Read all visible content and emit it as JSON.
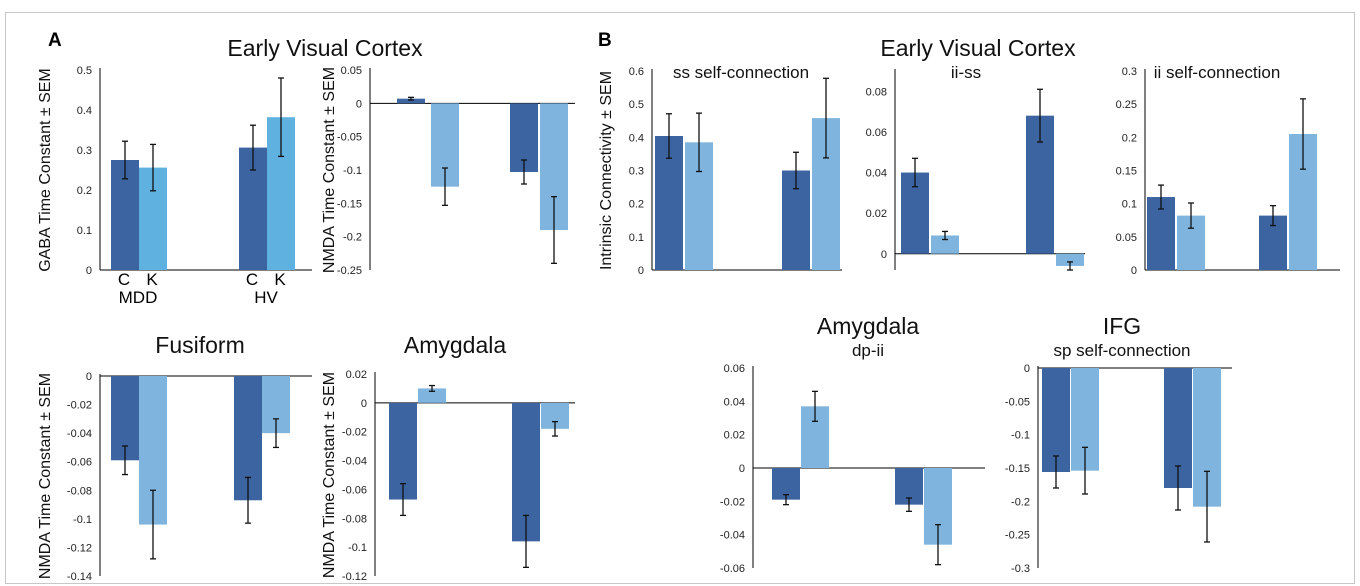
{
  "panels": {
    "a": "A",
    "b": "B"
  },
  "headings": {
    "a_top": "Early Visual Cortex",
    "b_top": "Early Visual Cortex",
    "fusiform": "Fusiform",
    "amygdala_a": "Amygdala",
    "amygdala_b": "Amygdala",
    "ifg": "IFG"
  },
  "group_labels": {
    "c": "C",
    "k": "K",
    "mdd": "MDD",
    "hv": "HV"
  },
  "colors": {
    "dark": "#3c64a0",
    "medium": "#5fb1e0",
    "light": "#7eb4de"
  },
  "chart_data": [
    {
      "id": "gaba_evc",
      "type": "bar",
      "ylabel": "GABA Time Constant ± SEM",
      "title": "",
      "ylim": [
        0,
        0.5
      ],
      "ticks": [
        "0.5",
        "0.4",
        "0.3",
        "0.2",
        "0.1",
        "0"
      ],
      "groups": [
        "MDD",
        "HV"
      ],
      "conditions": [
        "C",
        "K"
      ],
      "values": [
        0.275,
        0.256,
        0.306,
        0.382
      ],
      "errors": [
        0.047,
        0.058,
        0.056,
        0.098
      ],
      "colors": [
        "dark",
        "medium",
        "dark",
        "medium"
      ]
    },
    {
      "id": "nmda_evc",
      "type": "bar",
      "ylabel": "NMDA Time Constant ± SEM",
      "title": "",
      "ylim": [
        -0.25,
        0.05
      ],
      "ticks": [
        "0.05",
        "0",
        "-0.05",
        "-0.1",
        "-0.15",
        "-0.2",
        "-0.25"
      ],
      "groups": [
        "MDD",
        "HV"
      ],
      "conditions": [
        "C",
        "K"
      ],
      "values": [
        0.007,
        -0.125,
        -0.103,
        -0.19
      ],
      "errors": [
        0.002,
        0.028,
        0.018,
        0.05
      ],
      "colors": [
        "dark",
        "light",
        "dark",
        "light"
      ]
    },
    {
      "id": "nmda_fusiform",
      "type": "bar",
      "ylabel": "NMDA Time Constant ± SEM",
      "title": "",
      "ylim": [
        -0.14,
        0
      ],
      "ticks": [
        "0",
        "-0.02",
        "-0.04",
        "-0.06",
        "-0.08",
        "-0.1",
        "-0.12",
        "-0.14"
      ],
      "groups": [
        "MDD",
        "HV"
      ],
      "conditions": [
        "C",
        "K"
      ],
      "values": [
        -0.059,
        -0.104,
        -0.087,
        -0.04
      ],
      "errors": [
        0.01,
        0.024,
        0.016,
        0.01
      ],
      "colors": [
        "dark",
        "light",
        "dark",
        "light"
      ]
    },
    {
      "id": "nmda_amygdala",
      "type": "bar",
      "ylabel": "NMDA Time Constant ± SEM",
      "title": "",
      "ylim": [
        -0.12,
        0.02
      ],
      "ticks": [
        "0.02",
        "0",
        "-0.02",
        "-0.04",
        "-0.06",
        "-0.08",
        "-0.1",
        "-0.12"
      ],
      "groups": [
        "MDD",
        "HV"
      ],
      "conditions": [
        "C",
        "K"
      ],
      "values": [
        -0.067,
        0.01,
        -0.096,
        -0.018
      ],
      "errors": [
        0.011,
        0.002,
        0.018,
        0.005
      ],
      "colors": [
        "dark",
        "light",
        "dark",
        "light"
      ]
    },
    {
      "id": "ss_self",
      "type": "bar",
      "ylabel": "Intrinsic Connectivity ± SEM",
      "title": "ss self-connection",
      "ylim": [
        0,
        0.6
      ],
      "ticks": [
        "0.6",
        "0.5",
        "0.4",
        "0.3",
        "0.2",
        "0.1",
        "0"
      ],
      "groups": [
        "MDD",
        "HV"
      ],
      "conditions": [
        "C",
        "K"
      ],
      "values": [
        0.404,
        0.385,
        0.3,
        0.458
      ],
      "errors": [
        0.067,
        0.088,
        0.055,
        0.12
      ],
      "colors": [
        "dark",
        "light",
        "dark",
        "light"
      ]
    },
    {
      "id": "ii_ss",
      "type": "bar",
      "ylabel": "",
      "title": "ii-ss",
      "ylim": [
        -0.008,
        0.09
      ],
      "ticks": [
        "0.08",
        "0.06",
        "0.04",
        "0.02",
        "0"
      ],
      "groups": [
        "MDD",
        "HV"
      ],
      "conditions": [
        "C",
        "K"
      ],
      "values": [
        0.04,
        0.009,
        0.068,
        -0.006
      ],
      "errors": [
        0.007,
        0.002,
        0.013,
        0.002
      ],
      "colors": [
        "dark",
        "light",
        "dark",
        "light"
      ]
    },
    {
      "id": "ii_self",
      "type": "bar",
      "ylabel": "",
      "title": "ii self-connection",
      "ylim": [
        0,
        0.3
      ],
      "ticks": [
        "0.3",
        "0.25",
        "0.2",
        "0.15",
        "0.1",
        "0.05",
        "0"
      ],
      "groups": [
        "MDD",
        "HV"
      ],
      "conditions": [
        "C",
        "K"
      ],
      "values": [
        0.11,
        0.082,
        0.082,
        0.205
      ],
      "errors": [
        0.018,
        0.019,
        0.015,
        0.053
      ],
      "colors": [
        "dark",
        "light",
        "dark",
        "light"
      ]
    },
    {
      "id": "dp_ii",
      "type": "bar",
      "ylabel": "",
      "title": "dp-ii",
      "ylim": [
        -0.06,
        0.06
      ],
      "ticks": [
        "0.06",
        "0.04",
        "0.02",
        "0",
        "-0.02",
        "-0.04",
        "-0.06"
      ],
      "groups": [
        "MDD",
        "HV"
      ],
      "conditions": [
        "C",
        "K"
      ],
      "values": [
        -0.019,
        0.037,
        -0.022,
        -0.046
      ],
      "errors": [
        0.003,
        0.009,
        0.004,
        0.012
      ],
      "colors": [
        "dark",
        "light",
        "dark",
        "light"
      ]
    },
    {
      "id": "sp_self",
      "type": "bar",
      "ylabel": "",
      "title": "sp self-connection",
      "ylim": [
        -0.3,
        0
      ],
      "ticks": [
        "0",
        "-0.05",
        "-0.1",
        "-0.15",
        "-0.2",
        "-0.25",
        "-0.3"
      ],
      "groups": [
        "MDD",
        "HV"
      ],
      "conditions": [
        "C",
        "K"
      ],
      "values": [
        -0.156,
        -0.154,
        -0.18,
        -0.208
      ],
      "errors": [
        0.024,
        0.035,
        0.033,
        0.053
      ],
      "colors": [
        "dark",
        "light",
        "dark",
        "light"
      ]
    }
  ]
}
